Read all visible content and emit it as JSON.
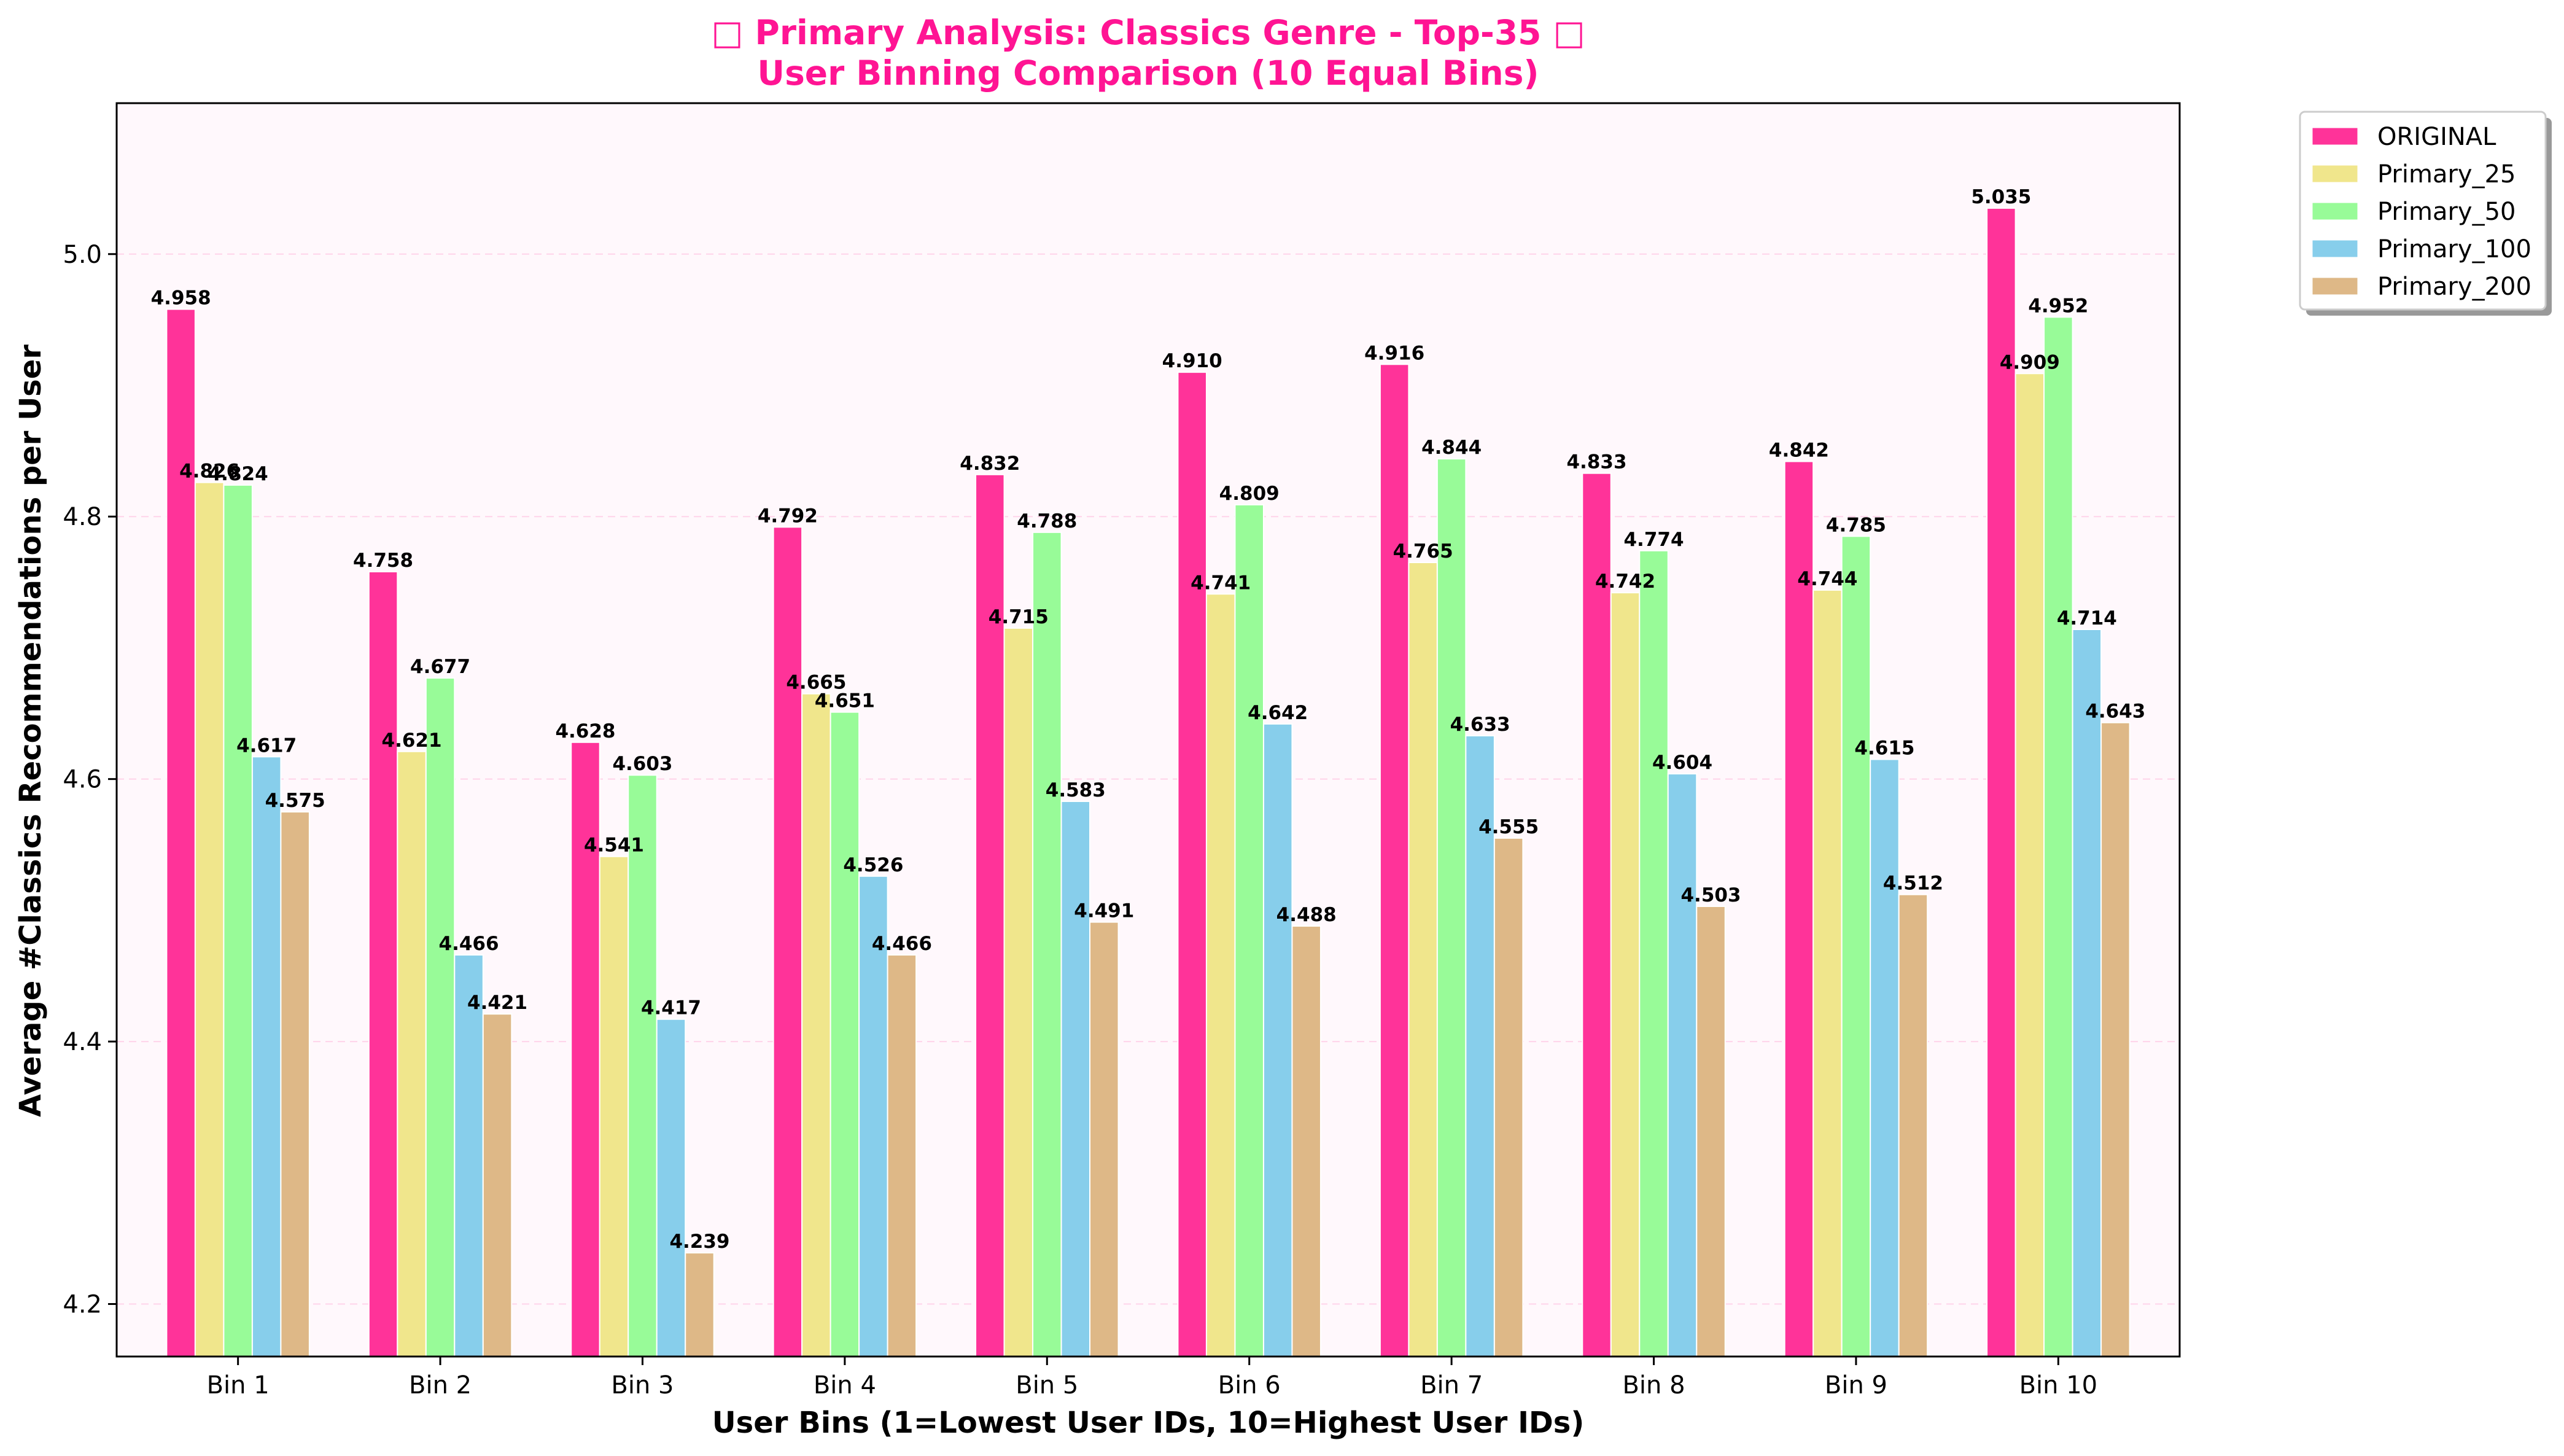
{
  "chart_data": {
    "type": "bar",
    "title": "□ Primary Analysis: Classics Genre - Top-35 □",
    "subtitle": "User Binning Comparison (10 Equal Bins)",
    "xlabel": "User Bins (1=Lowest User IDs, 10=Highest User IDs)",
    "ylabel": "Average #Classics Recommendations per User",
    "ylim": [
      4.16,
      5.115
    ],
    "yticks": [
      4.2,
      4.4,
      4.6,
      4.8,
      5.0
    ],
    "ytick_labels": [
      "4.2",
      "4.4",
      "4.6",
      "4.8",
      "5.0"
    ],
    "grid": true,
    "legend_position": "outside top-right",
    "categories": [
      "Bin 1",
      "Bin 2",
      "Bin 3",
      "Bin 4",
      "Bin 5",
      "Bin 6",
      "Bin 7",
      "Bin 8",
      "Bin 9",
      "Bin 10"
    ],
    "series": [
      {
        "name": "ORIGINAL",
        "color": "#ff3399",
        "values": [
          4.958,
          4.758,
          4.628,
          4.792,
          4.832,
          4.91,
          4.916,
          4.833,
          4.842,
          5.035
        ],
        "labels": [
          "4.958",
          "4.758",
          "4.628",
          "4.792",
          "4.832",
          "4.910",
          "4.916",
          "4.833",
          "4.842",
          "5.035"
        ]
      },
      {
        "name": "Primary_25",
        "color": "#f0e68c",
        "values": [
          4.826,
          4.621,
          4.541,
          4.665,
          4.715,
          4.741,
          4.765,
          4.742,
          4.744,
          4.909
        ],
        "labels": [
          "4.826",
          "4.621",
          "4.541",
          "4.665",
          "4.715",
          "4.741",
          "4.765",
          "4.742",
          "4.744",
          "4.909"
        ]
      },
      {
        "name": "Primary_50",
        "color": "#98fb98",
        "values": [
          4.824,
          4.677,
          4.603,
          4.651,
          4.788,
          4.809,
          4.844,
          4.774,
          4.785,
          4.952
        ],
        "labels": [
          "4.824",
          "4.677",
          "4.603",
          "4.651",
          "4.788",
          "4.809",
          "4.844",
          "4.774",
          "4.785",
          "4.952"
        ]
      },
      {
        "name": "Primary_100",
        "color": "#87ceeb",
        "values": [
          4.617,
          4.466,
          4.417,
          4.526,
          4.583,
          4.642,
          4.633,
          4.604,
          4.615,
          4.714
        ],
        "labels": [
          "4.617",
          "4.466",
          "4.417",
          "4.526",
          "4.583",
          "4.642",
          "4.633",
          "4.604",
          "4.615",
          "4.714"
        ]
      },
      {
        "name": "Primary_200",
        "color": "#deb887",
        "values": [
          4.575,
          4.421,
          4.239,
          4.466,
          4.491,
          4.488,
          4.555,
          4.503,
          4.512,
          4.643
        ],
        "labels": [
          "4.575",
          "4.421",
          "4.239",
          "4.466",
          "4.491",
          "4.488",
          "4.555",
          "4.503",
          "4.512",
          "4.643"
        ]
      }
    ],
    "colors": {
      "plot_background": "#fff8fc",
      "title": "#ff1493",
      "grid": "#ff69b4"
    }
  }
}
